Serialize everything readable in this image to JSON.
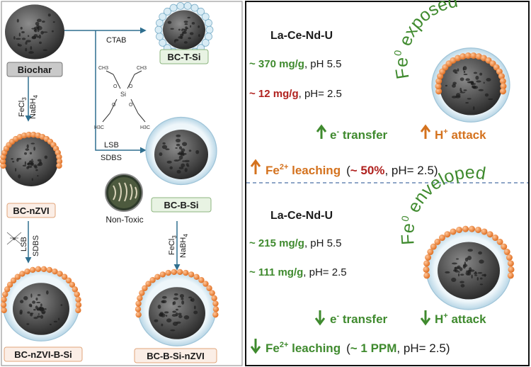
{
  "colors": {
    "green": "#3f8a2e",
    "orange": "#d4721e",
    "red": "#b0221f",
    "dark": "#1a1a1a",
    "label_green_bg": "#e8f3e3",
    "label_orange_bg": "#fbeee6",
    "label_gray_bg": "#c9c9c9",
    "particle": "#ef8a45",
    "shell": "#dcecf4"
  },
  "left": {
    "labels": {
      "biochar": "Biochar",
      "bc_t_si": "BC-T-Si",
      "bc_nzvi": "BC-nZVI",
      "bc_b_si": "BC-B-Si",
      "bc_nzvi_b_si": "BC-nZVI-B-Si",
      "bc_b_si_nzvi": "BC-B-Si-nZVI",
      "non_toxic": "Non-Toxic"
    },
    "reagents": {
      "ctab": "CTAB",
      "lsb": "LSB",
      "sdbs": "SDBS",
      "fecl": "FeCl",
      "fecl_sub": "3",
      "nabh": "NaBH",
      "nabh_sub": "4",
      "lsb2": "LSB",
      "sdbs2": "SDBS",
      "fecl2": "FeCl",
      "fecl2_sub": "3",
      "nabh2": "NaBH",
      "nabh2_sub": "4"
    },
    "molecule": {
      "si": "Si",
      "o": "O",
      "h3c": "H3C",
      "ch3": "CH3"
    }
  },
  "right": {
    "top": {
      "title": "La-Ce-Nd-U",
      "cap1_value": "~ 370 mg/g",
      "cap1_cond": ", pH 5.5",
      "cap2_value": "~ 12 mg/g",
      "cap2_cond": ", pH= 2.5",
      "arc_sup": "0",
      "arc_text": "exposed",
      "arc_fe": "Fe",
      "e_transfer": "e",
      "e_sup": "-",
      "e_rest": " transfer",
      "h_attack": "H",
      "h_sup": "+",
      "h_rest": " attack",
      "leach_fe": "Fe",
      "leach_sup": "2+",
      "leach_rest": " leaching",
      "leach_paren_open": "(",
      "leach_value": "~ 50%",
      "leach_cond": ", pH= 2.5)"
    },
    "bottom": {
      "title": "La-Ce-Nd-U",
      "cap1_value": "~ 215 mg/g",
      "cap1_cond": ", pH 5.5",
      "cap2_value": "~ 111 mg/g",
      "cap2_cond": ", pH= 2.5",
      "arc_fe": "Fe",
      "arc_sup": "0",
      "arc_text": "enveloped",
      "e_transfer": "e",
      "e_sup": "-",
      "e_rest": " transfer",
      "h_attack": "H",
      "h_sup": "+",
      "h_rest": " attack",
      "leach_fe": "Fe",
      "leach_sup": "2+",
      "leach_rest": " leaching",
      "leach_paren_open": "(",
      "leach_value": "~ 1 PPM",
      "leach_cond": ", pH= 2.5)"
    }
  }
}
